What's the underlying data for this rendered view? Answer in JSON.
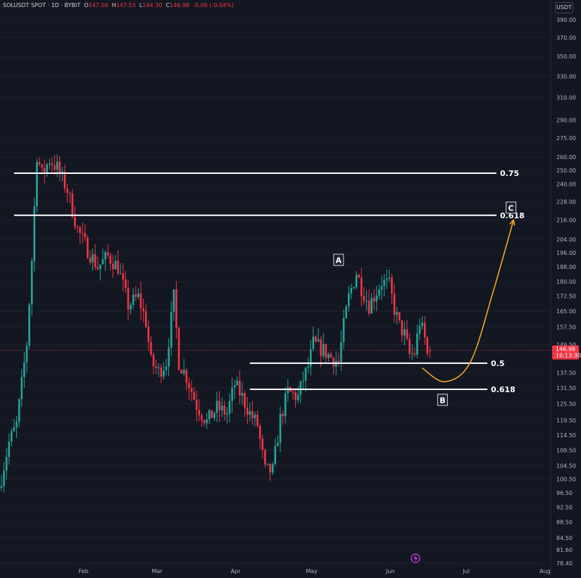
{
  "header": {
    "symbol": "SOLUSDT SPOT · 1D · BYBIT",
    "o_label": "O",
    "o": "147.04",
    "h_label": "H",
    "h": "147.53",
    "l_label": "L",
    "l": "144.30",
    "c_label": "C",
    "c": "146.98",
    "change": "-0.06 (-0.04%)"
  },
  "unit_button": "USDT",
  "price_badge": {
    "price": "146.98",
    "countdown": "16:13:30"
  },
  "colors": {
    "background": "#131722",
    "up": "#26a69a",
    "down": "#f23645",
    "level_line": "#ffffff",
    "projection": "#f5a623",
    "axis_text": "#b2b5be"
  },
  "chart_data": {
    "type": "candlestick",
    "title": "",
    "xlabel": "",
    "ylabel": "",
    "y_scale": "log",
    "ylim": [
      78.4,
      405
    ],
    "x_ticks": [
      "Feb",
      "Mar",
      "Apr",
      "May",
      "Jun",
      "Jul",
      "Aug"
    ],
    "y_ticks": [
      "390.00",
      "370.00",
      "350.00",
      "330.00",
      "310.00",
      "290.00",
      "275.00",
      "260.00",
      "250.00",
      "240.00",
      "228.00",
      "216.00",
      "204.00",
      "196.00",
      "188.00",
      "180.00",
      "172.50",
      "165.00",
      "157.50",
      "149.50",
      "137.50",
      "131.50",
      "125.50",
      "119.50",
      "114.50",
      "109.50",
      "104.50",
      "100.50",
      "96.50",
      "92.50",
      "88.50",
      "84.50",
      "81.60",
      "78.40"
    ],
    "levels": [
      {
        "label": "0.75",
        "price": 248
      },
      {
        "label": "0.618",
        "price": 219
      },
      {
        "label": "0.5",
        "price": 141.5
      },
      {
        "label": "0.618",
        "price": 131
      }
    ],
    "wave_labels": [
      {
        "label": "A",
        "date": "2024-05-13",
        "price": 192
      },
      {
        "label": "B",
        "date": "2024-06-23",
        "price": 127
      },
      {
        "label": "C",
        "date": "2024-07-20",
        "price": 224
      }
    ],
    "projection": [
      {
        "date": "2024-06-15",
        "price": 139.5
      },
      {
        "date": "2024-06-24",
        "price": 134
      },
      {
        "date": "2024-07-04",
        "price": 142
      },
      {
        "date": "2024-07-13",
        "price": 175
      },
      {
        "date": "2024-07-21",
        "price": 216
      }
    ],
    "candles_range": {
      "start": "2024-01-01",
      "end": "2024-06-18"
    },
    "close_anchors": [
      {
        "date": "2024-01-01",
        "price": 101
      },
      {
        "date": "2024-01-04",
        "price": 112
      },
      {
        "date": "2024-01-07",
        "price": 118
      },
      {
        "date": "2024-01-11",
        "price": 150
      },
      {
        "date": "2024-01-13",
        "price": 192
      },
      {
        "date": "2024-01-15",
        "price": 262
      },
      {
        "date": "2024-01-17",
        "price": 247
      },
      {
        "date": "2024-01-20",
        "price": 258
      },
      {
        "date": "2024-01-23",
        "price": 252
      },
      {
        "date": "2024-01-27",
        "price": 236
      },
      {
        "date": "2024-01-31",
        "price": 210
      },
      {
        "date": "2024-02-04",
        "price": 198
      },
      {
        "date": "2024-02-08",
        "price": 188
      },
      {
        "date": "2024-02-12",
        "price": 194
      },
      {
        "date": "2024-02-16",
        "price": 188
      },
      {
        "date": "2024-02-20",
        "price": 168
      },
      {
        "date": "2024-02-24",
        "price": 172
      },
      {
        "date": "2024-02-27",
        "price": 160
      },
      {
        "date": "2024-02-29",
        "price": 142
      },
      {
        "date": "2024-03-03",
        "price": 138
      },
      {
        "date": "2024-03-06",
        "price": 142
      },
      {
        "date": "2024-03-09",
        "price": 172
      },
      {
        "date": "2024-03-11",
        "price": 142
      },
      {
        "date": "2024-03-14",
        "price": 136
      },
      {
        "date": "2024-03-18",
        "price": 125
      },
      {
        "date": "2024-03-22",
        "price": 119
      },
      {
        "date": "2024-03-26",
        "price": 124
      },
      {
        "date": "2024-03-30",
        "price": 122
      },
      {
        "date": "2024-04-02",
        "price": 133
      },
      {
        "date": "2024-04-05",
        "price": 128
      },
      {
        "date": "2024-04-08",
        "price": 122
      },
      {
        "date": "2024-04-11",
        "price": 118
      },
      {
        "date": "2024-04-14",
        "price": 103
      },
      {
        "date": "2024-04-17",
        "price": 103
      },
      {
        "date": "2024-04-20",
        "price": 120
      },
      {
        "date": "2024-04-23",
        "price": 130
      },
      {
        "date": "2024-04-27",
        "price": 128
      },
      {
        "date": "2024-04-29",
        "price": 135
      },
      {
        "date": "2024-05-01",
        "price": 140
      },
      {
        "date": "2024-05-03",
        "price": 150
      },
      {
        "date": "2024-05-07",
        "price": 147
      },
      {
        "date": "2024-05-10",
        "price": 144
      },
      {
        "date": "2024-05-13",
        "price": 142
      },
      {
        "date": "2024-05-15",
        "price": 158
      },
      {
        "date": "2024-05-17",
        "price": 172
      },
      {
        "date": "2024-05-20",
        "price": 185
      },
      {
        "date": "2024-05-22",
        "price": 177
      },
      {
        "date": "2024-05-25",
        "price": 168
      },
      {
        "date": "2024-05-28",
        "price": 175
      },
      {
        "date": "2024-05-30",
        "price": 180
      },
      {
        "date": "2024-06-02",
        "price": 178
      },
      {
        "date": "2024-06-04",
        "price": 166
      },
      {
        "date": "2024-06-06",
        "price": 158
      },
      {
        "date": "2024-06-08",
        "price": 154
      },
      {
        "date": "2024-06-10",
        "price": 145
      },
      {
        "date": "2024-06-12",
        "price": 146
      },
      {
        "date": "2024-06-14",
        "price": 160
      },
      {
        "date": "2024-06-16",
        "price": 152
      },
      {
        "date": "2024-06-17",
        "price": 145
      },
      {
        "date": "2024-06-18",
        "price": 146.98
      }
    ]
  }
}
